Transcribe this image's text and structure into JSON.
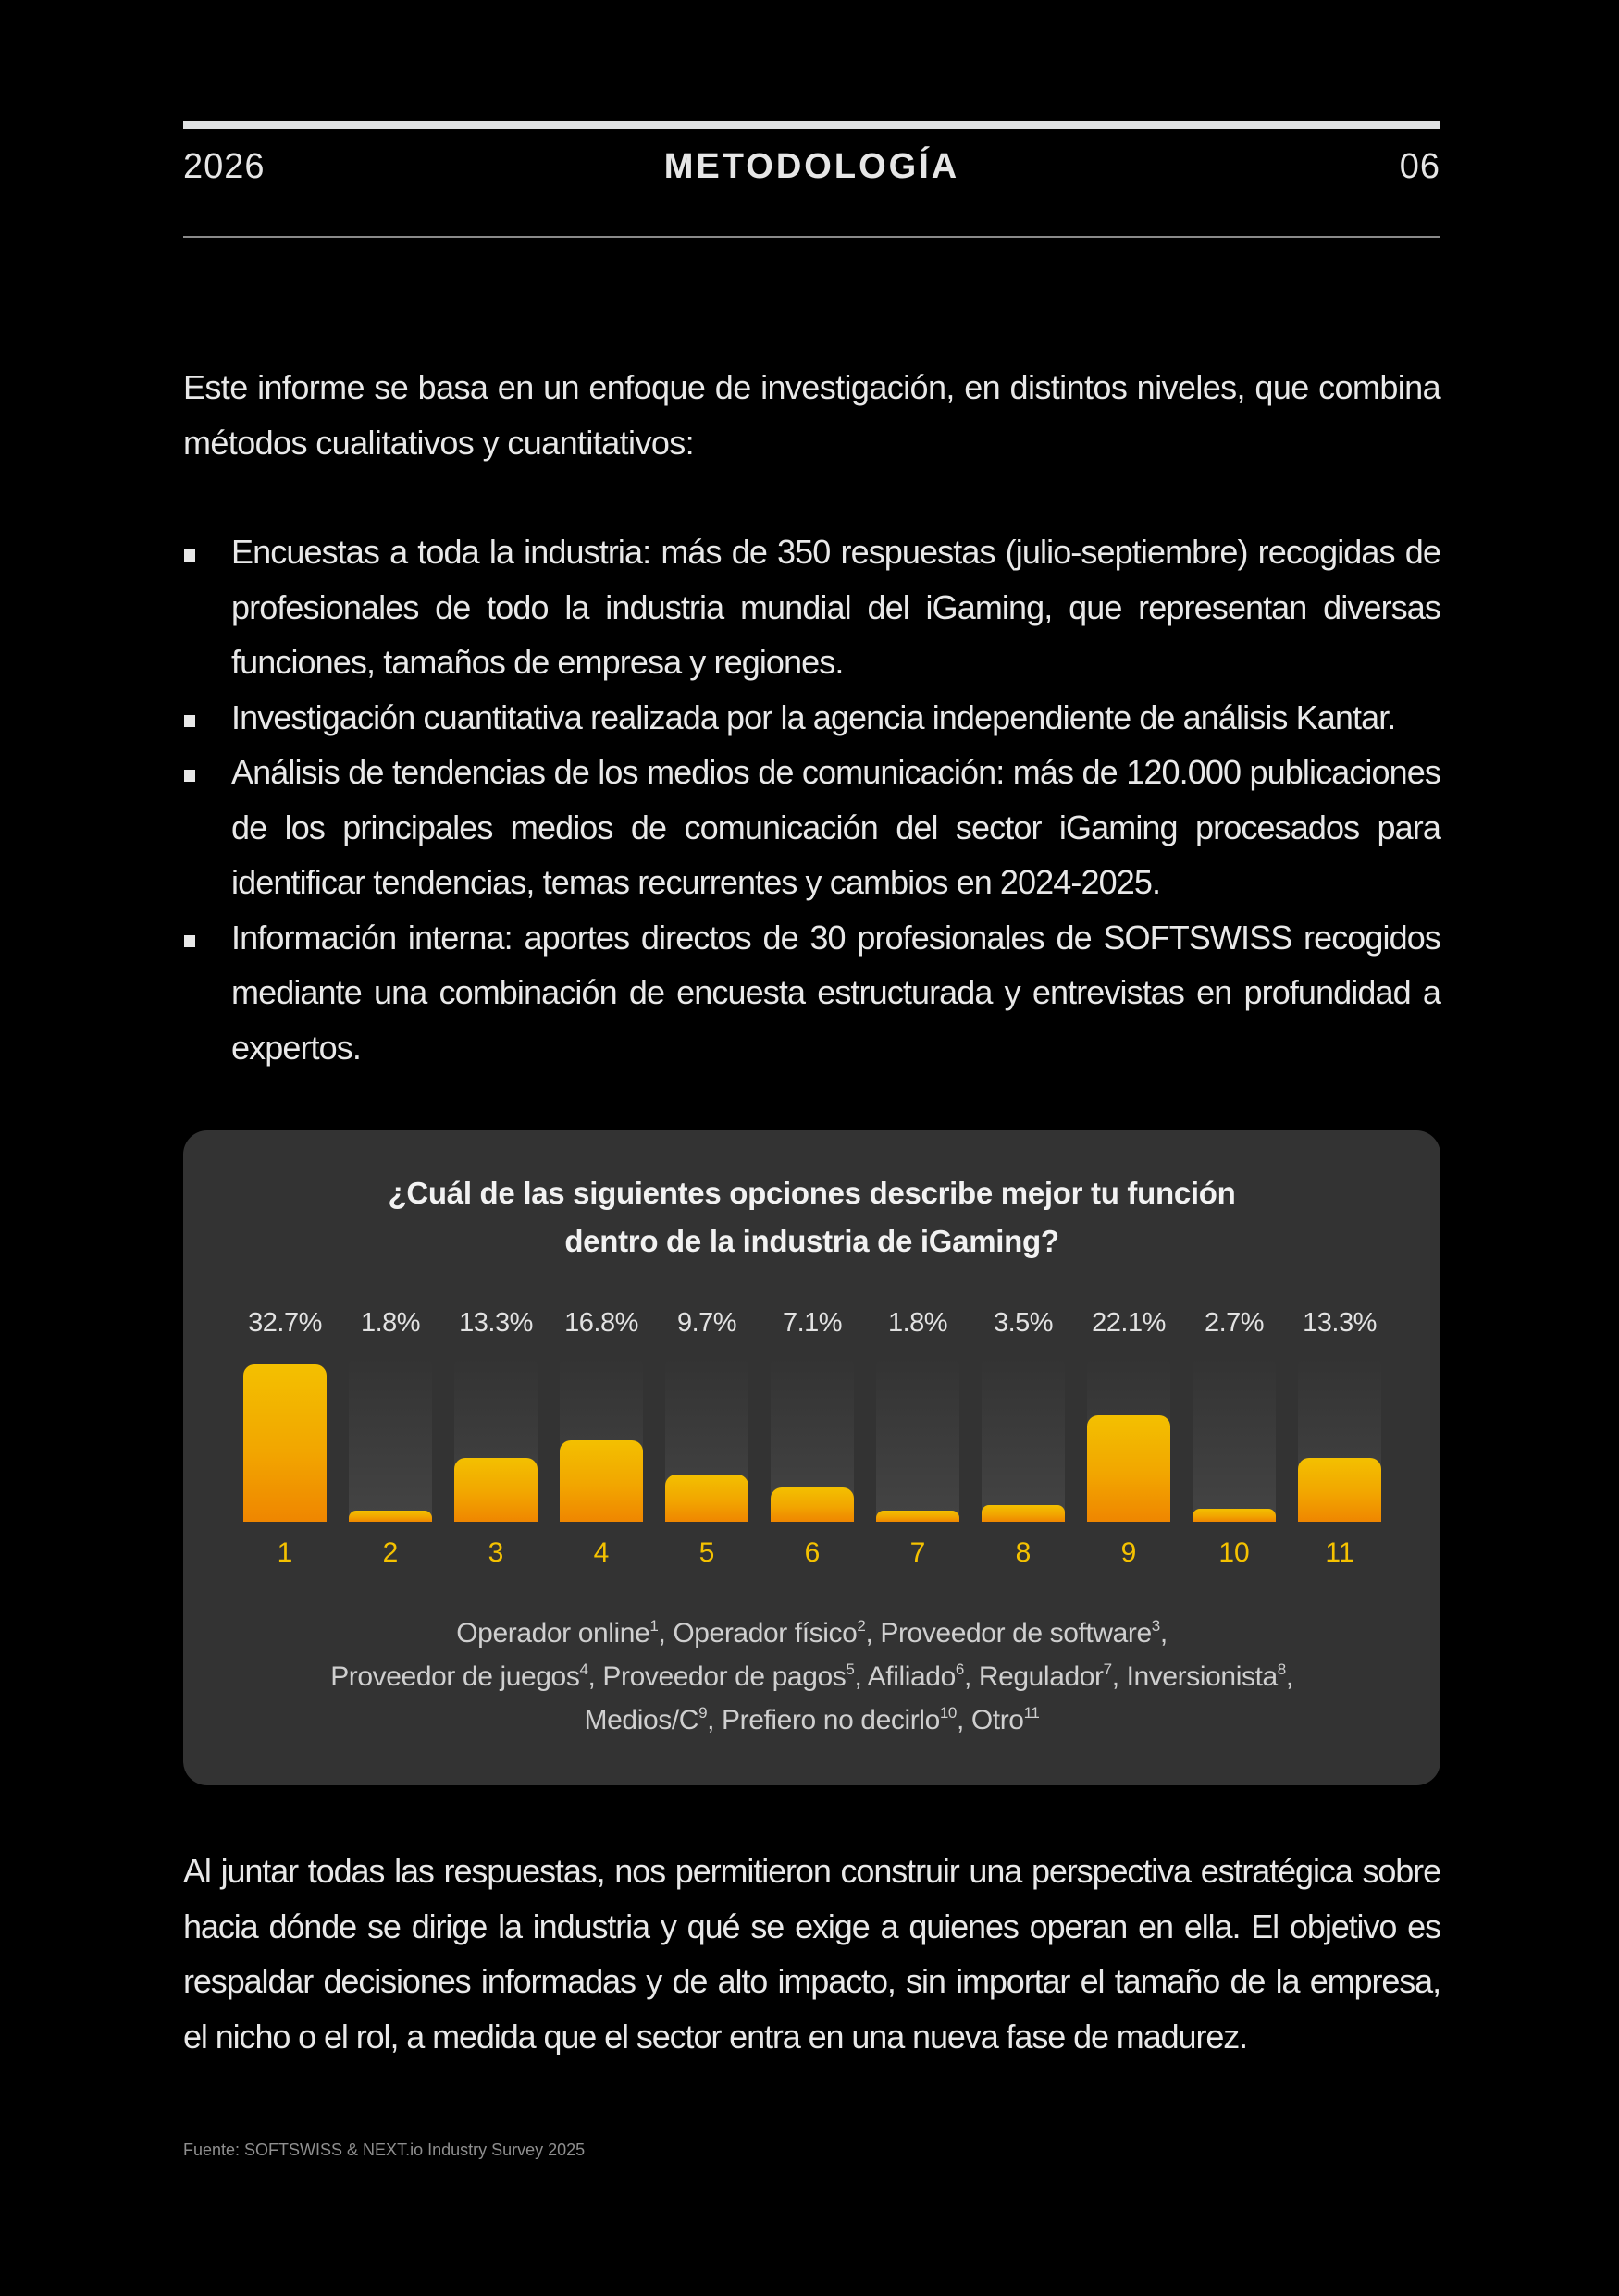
{
  "header": {
    "year": "2026",
    "title": "METODOLOGÍA",
    "page_number": "06"
  },
  "intro": "Este informe se basa en un enfoque de investigación, en distintos niveles,  que combina métodos cualitativos y cuantitativos:",
  "bullets": [
    "Encuestas a toda la industria: más de 350 respuestas (julio-septiembre) recogidas de profesionales de todo la industria mundial del iGaming, que representan diversas funciones, tamaños de empresa y regiones.",
    "Investigación cuantitativa realizada por la agencia independiente de análisis Kantar.",
    "Análisis de tendencias de los medios de comunicación: más de 120.000 publicaciones de los principales medios de comunicación del sector iGaming procesados para identificar tendencias, temas recurrentes y cambios en 2024-2025.",
    "Información interna: aportes directos de 30 profesionales de SOFTSWISS recogidos mediante una combinación de encuesta estructurada y entrevistas en profundidad a expertos."
  ],
  "chart": {
    "title_line1": "¿Cuál de las siguientes opciones describe mejor tu función",
    "title_line2": "dentro de la industria de iGaming?",
    "legend": [
      {
        "label": "Operador online",
        "sup": "1",
        "sep": ", "
      },
      {
        "label": "Operador físico",
        "sup": "2",
        "sep": ", "
      },
      {
        "label": "Proveedor de software",
        "sup": "3",
        "sep": ","
      },
      {
        "label": "Proveedor de juegos",
        "sup": "4",
        "sep": ", "
      },
      {
        "label": "Proveedor de pagos",
        "sup": "5",
        "sep": ", "
      },
      {
        "label": "Afiliado",
        "sup": "6",
        "sep": ", "
      },
      {
        "label": "Regulador",
        "sup": "7",
        "sep": ", "
      },
      {
        "label": "Inversionista",
        "sup": "8",
        "sep": ","
      },
      {
        "label": "Medios/C",
        "sup": "9",
        "sep": ", "
      },
      {
        "label": "Prefiero no decirlo",
        "sup": "10",
        "sep": ", "
      },
      {
        "label": "Otro",
        "sup": "11",
        "sep": ""
      }
    ],
    "colors": {
      "bar_top": "#f3c000",
      "bar_bottom": "#ef8600",
      "category_label": "#f5c200",
      "card_bg": "#333333"
    }
  },
  "chart_data": {
    "type": "bar",
    "title": "¿Cuál de las siguientes opciones describe mejor tu función dentro de la industria de iGaming?",
    "categories": [
      "1",
      "2",
      "3",
      "4",
      "5",
      "6",
      "7",
      "8",
      "9",
      "10",
      "11"
    ],
    "category_names": [
      "Operador online",
      "Operador físico",
      "Proveedor de software",
      "Proveedor de juegos",
      "Proveedor de pagos",
      "Afiliado",
      "Regulador",
      "Inversionista",
      "Medios/C",
      "Prefiero no decirlo",
      "Otro"
    ],
    "values": [
      32.7,
      1.8,
      13.3,
      16.8,
      9.7,
      7.1,
      1.8,
      3.5,
      22.1,
      2.7,
      13.3
    ],
    "value_labels": [
      "32.7%",
      "1.8%",
      "13.3%",
      "16.8%",
      "9.7%",
      "7.1%",
      "1.8%",
      "3.5%",
      "22.1%",
      "2.7%",
      "13.3%"
    ],
    "xlabel": "",
    "ylabel": "",
    "unit": "%",
    "ylim": [
      0,
      33
    ],
    "grid": false,
    "legend_position": "bottom"
  },
  "closing": "Al juntar todas las respuestas, nos permitieron construir una perspectiva estratégica sobre hacia dónde se dirige la industria y qué se exige a quienes operan en ella. El objetivo es respaldar decisiones informadas y de alto impacto, sin importar el tamaño de la empresa, el nicho o el rol, a medida que el sector entra en una nueva fase de madurez.",
  "source": "Fuente: SOFTSWISS & NEXT.io Industry Survey 2025"
}
